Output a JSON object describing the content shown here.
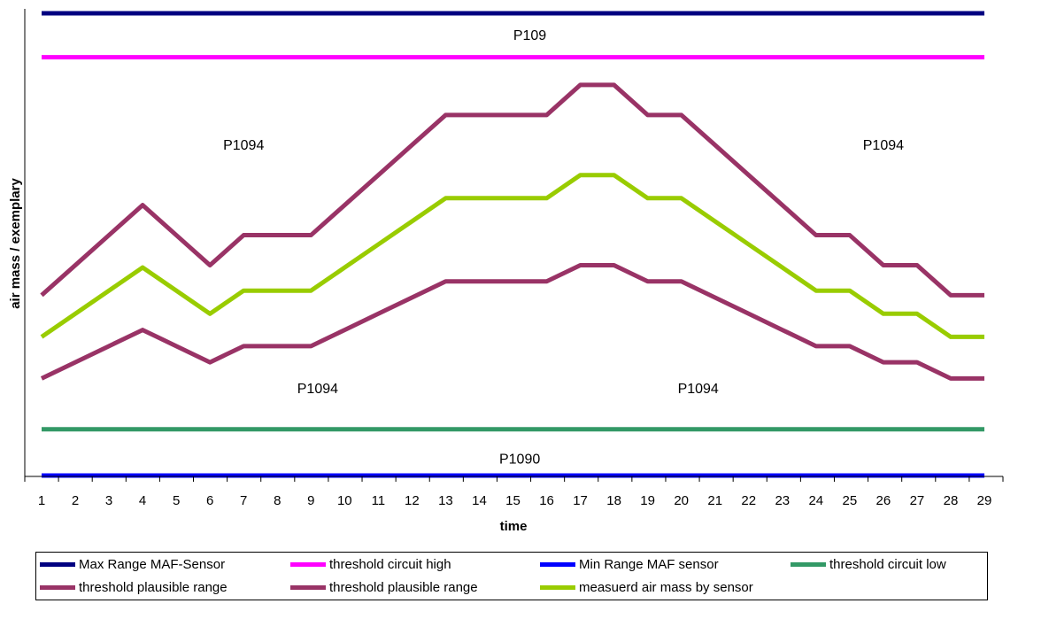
{
  "chart_data": {
    "type": "line",
    "ylabel": "air mass / exemplary",
    "xlabel": "time",
    "x": [
      1,
      2,
      3,
      4,
      5,
      6,
      7,
      8,
      9,
      10,
      11,
      12,
      13,
      14,
      15,
      16,
      17,
      18,
      19,
      20,
      21,
      22,
      23,
      24,
      25,
      26,
      27,
      28,
      29
    ],
    "x_tick_labels": [
      "1",
      "2",
      "3",
      "4",
      "5",
      "6",
      "7",
      "8",
      "9",
      "10",
      "11",
      "12",
      "13",
      "14",
      "15",
      "16",
      "17",
      "18",
      "19",
      "20",
      "21",
      "22",
      "23",
      "24",
      "25",
      "26",
      "27",
      "28",
      "29"
    ],
    "ylim": [
      0,
      100
    ],
    "y_ticks_shown": false,
    "grid": false,
    "legend_position": "bottom",
    "series": [
      {
        "name": "Max Range MAF-Sensor",
        "color": "#000080",
        "values": [
          100,
          100,
          100,
          100,
          100,
          100,
          100,
          100,
          100,
          100,
          100,
          100,
          100,
          100,
          100,
          100,
          100,
          100,
          100,
          100,
          100,
          100,
          100,
          100,
          100,
          100,
          100,
          100,
          100
        ]
      },
      {
        "name": "threshold circuit high",
        "color": "#FF00FF",
        "values": [
          90.5,
          90.5,
          90.5,
          90.5,
          90.5,
          90.5,
          90.5,
          90.5,
          90.5,
          90.5,
          90.5,
          90.5,
          90.5,
          90.5,
          90.5,
          90.5,
          90.5,
          90.5,
          90.5,
          90.5,
          90.5,
          90.5,
          90.5,
          90.5,
          90.5,
          90.5,
          90.5,
          90.5,
          90.5
        ]
      },
      {
        "name": "Min Range MAF sensor",
        "color": "#0000FF",
        "values": [
          0,
          0,
          0,
          0,
          0,
          0,
          0,
          0,
          0,
          0,
          0,
          0,
          0,
          0,
          0,
          0,
          0,
          0,
          0,
          0,
          0,
          0,
          0,
          0,
          0,
          0,
          0,
          0,
          0
        ]
      },
      {
        "name": "threshold circuit low",
        "color": "#339966",
        "values": [
          10,
          10,
          10,
          10,
          10,
          10,
          10,
          10,
          10,
          10,
          10,
          10,
          10,
          10,
          10,
          10,
          10,
          10,
          10,
          10,
          10,
          10,
          10,
          10,
          10,
          10,
          10,
          10,
          10
        ]
      },
      {
        "name": "threshold plausible range",
        "color": "#993366",
        "values": [
          39,
          45.5,
          52,
          58.5,
          52,
          45.5,
          52,
          52,
          52,
          58.5,
          65,
          71.5,
          78,
          78,
          78,
          78,
          84.5,
          84.5,
          78,
          78,
          71.5,
          65,
          58.5,
          52,
          52,
          45.5,
          45.5,
          39,
          39
        ]
      },
      {
        "name": "threshold plausible range",
        "color": "#993366",
        "values": [
          21,
          24.5,
          28,
          31.5,
          28,
          24.5,
          28,
          28,
          28,
          31.5,
          35,
          38.5,
          42,
          42,
          42,
          42,
          45.5,
          45.5,
          42,
          42,
          38.5,
          35,
          31.5,
          28,
          28,
          24.5,
          24.5,
          21,
          21
        ]
      },
      {
        "name": "measuerd air mass by sensor",
        "color": "#99CC00",
        "values": [
          30,
          35,
          40,
          45,
          40,
          35,
          40,
          40,
          40,
          45,
          50,
          55,
          60,
          60,
          60,
          60,
          65,
          65,
          60,
          60,
          55,
          50,
          45,
          40,
          40,
          35,
          35,
          30,
          30
        ]
      }
    ],
    "annotations": [
      {
        "text": "P109",
        "x": 15.5,
        "y": 95.2
      },
      {
        "text": "P1094",
        "x": 7,
        "y": 71.5
      },
      {
        "text": "P1094",
        "x": 26,
        "y": 71.5
      },
      {
        "text": "P1094",
        "x": 9.2,
        "y": 18.8
      },
      {
        "text": "P1094",
        "x": 20.5,
        "y": 18.8
      },
      {
        "text": "P1090",
        "x": 15.2,
        "y": 3.5
      }
    ]
  }
}
